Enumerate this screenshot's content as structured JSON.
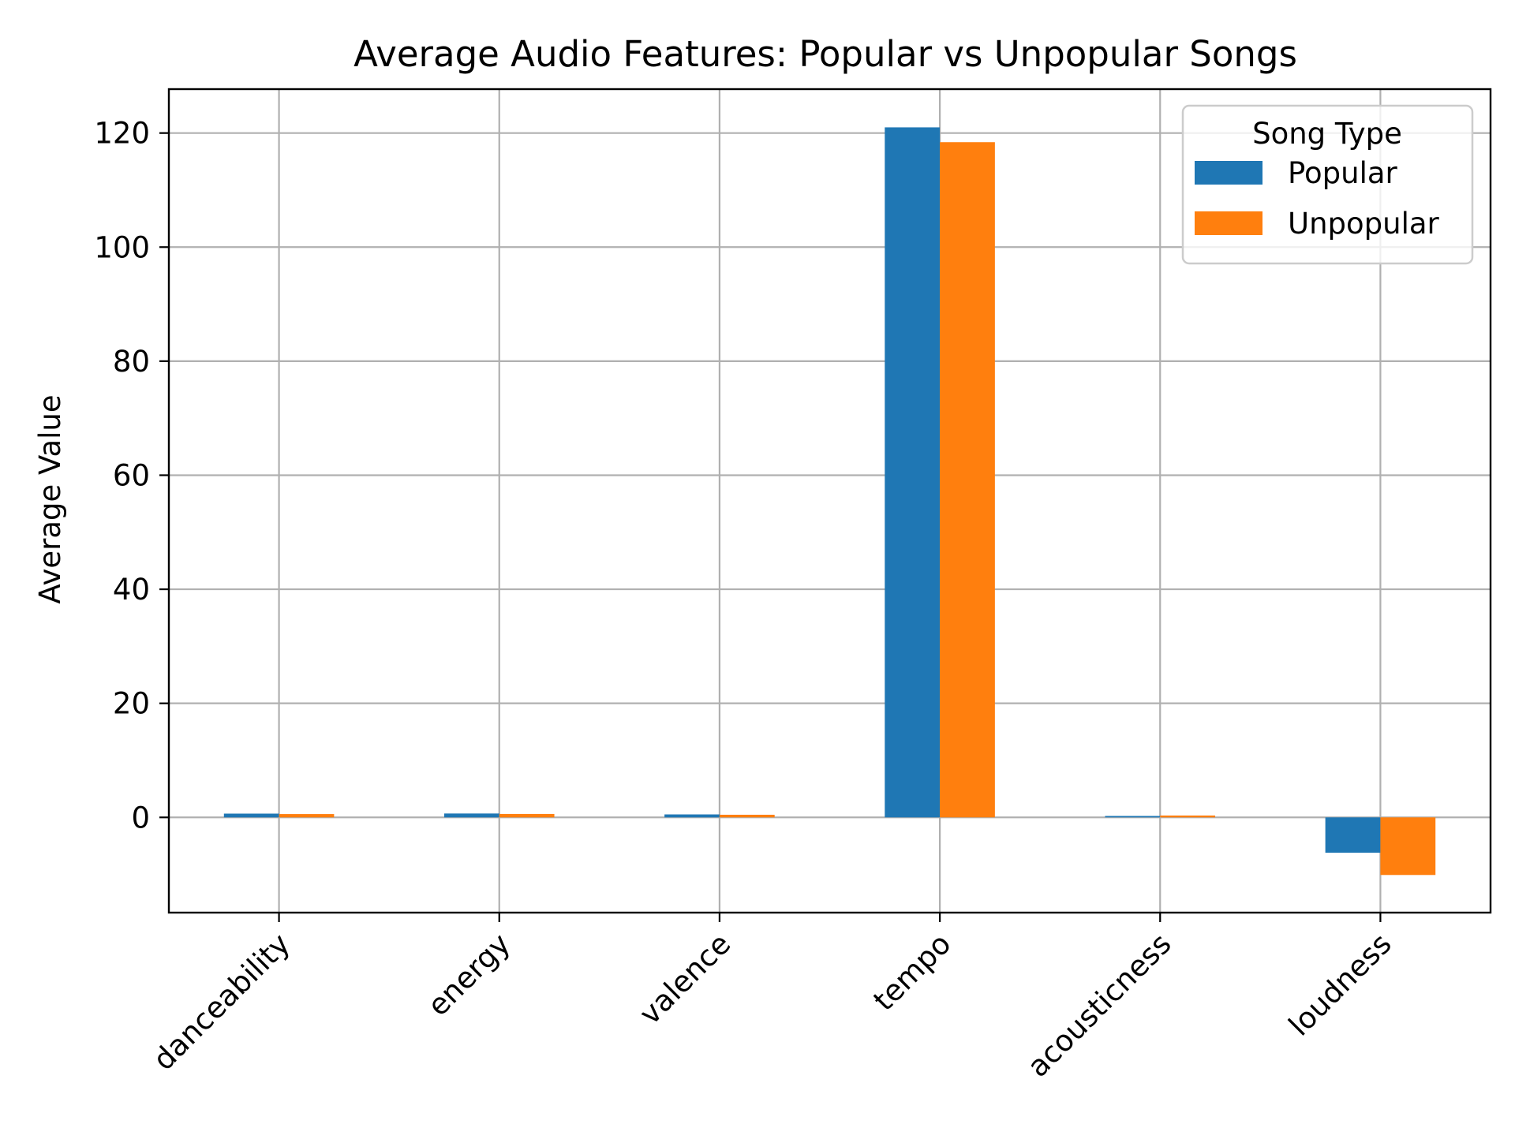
{
  "chart_data": {
    "type": "bar",
    "title": "Average Audio Features: Popular vs Unpopular Songs",
    "xlabel": "",
    "ylabel": "Average Value",
    "categories": [
      "danceability",
      "energy",
      "valence",
      "tempo",
      "acousticness",
      "loudness"
    ],
    "series": [
      {
        "name": "Popular",
        "color": "#1f77b4",
        "values": [
          0.66,
          0.68,
          0.52,
          121.0,
          0.25,
          -6.2
        ]
      },
      {
        "name": "Unpopular",
        "color": "#ff7f0e",
        "values": [
          0.58,
          0.6,
          0.46,
          118.4,
          0.33,
          -10.1
        ]
      }
    ],
    "ylim": [
      -16.7,
      127.7
    ],
    "yticks": [
      0,
      20,
      40,
      60,
      80,
      100,
      120
    ],
    "grid": true,
    "legend": {
      "title": "Song Type",
      "position": "top-right"
    }
  }
}
